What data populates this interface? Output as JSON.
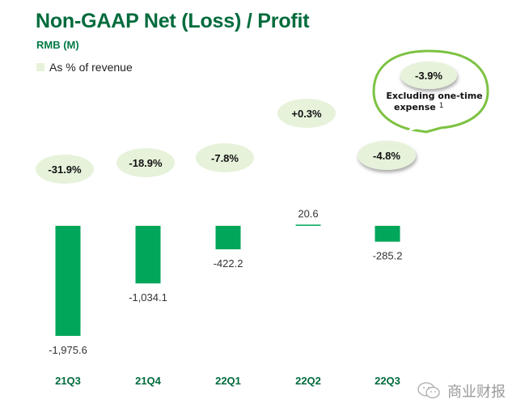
{
  "header": {
    "title": "Non-GAAP Net (Loss) / Profit",
    "subtitle": "RMB (M)",
    "legend_label": "As % of revenue"
  },
  "callout": {
    "value": "-3.9%",
    "text_line1": "Excluding one-time",
    "text_line2": "expense",
    "footnote": "1"
  },
  "watermark": {
    "text": "商业财报",
    "icon": "wechat-icon"
  },
  "colors": {
    "bar": "#00A65A",
    "ellipse": "#E6F2DA",
    "title": "#006B3C",
    "callout_border": "#7DC242"
  },
  "chart_data": {
    "type": "bar",
    "title": "Non-GAAP Net (Loss) / Profit",
    "ylabel": "RMB (M)",
    "xlabel": "",
    "categories": [
      "21Q3",
      "21Q4",
      "22Q1",
      "22Q2",
      "22Q3"
    ],
    "values": [
      -1975.6,
      -1034.1,
      -422.2,
      20.6,
      -285.2
    ],
    "value_labels": [
      "-1,975.6",
      "-1,034.1",
      "-422.2",
      "20.6",
      "-285.2"
    ],
    "percent_of_revenue": [
      "-31.9%",
      "-18.9%",
      "-7.8%",
      "+0.3%",
      "-4.8%"
    ],
    "legend": [
      "As % of revenue"
    ],
    "legend_position": "top-left",
    "grid": false,
    "annotations": [
      "22Q3: -3.9% Excluding one-time expense (1)"
    ]
  }
}
